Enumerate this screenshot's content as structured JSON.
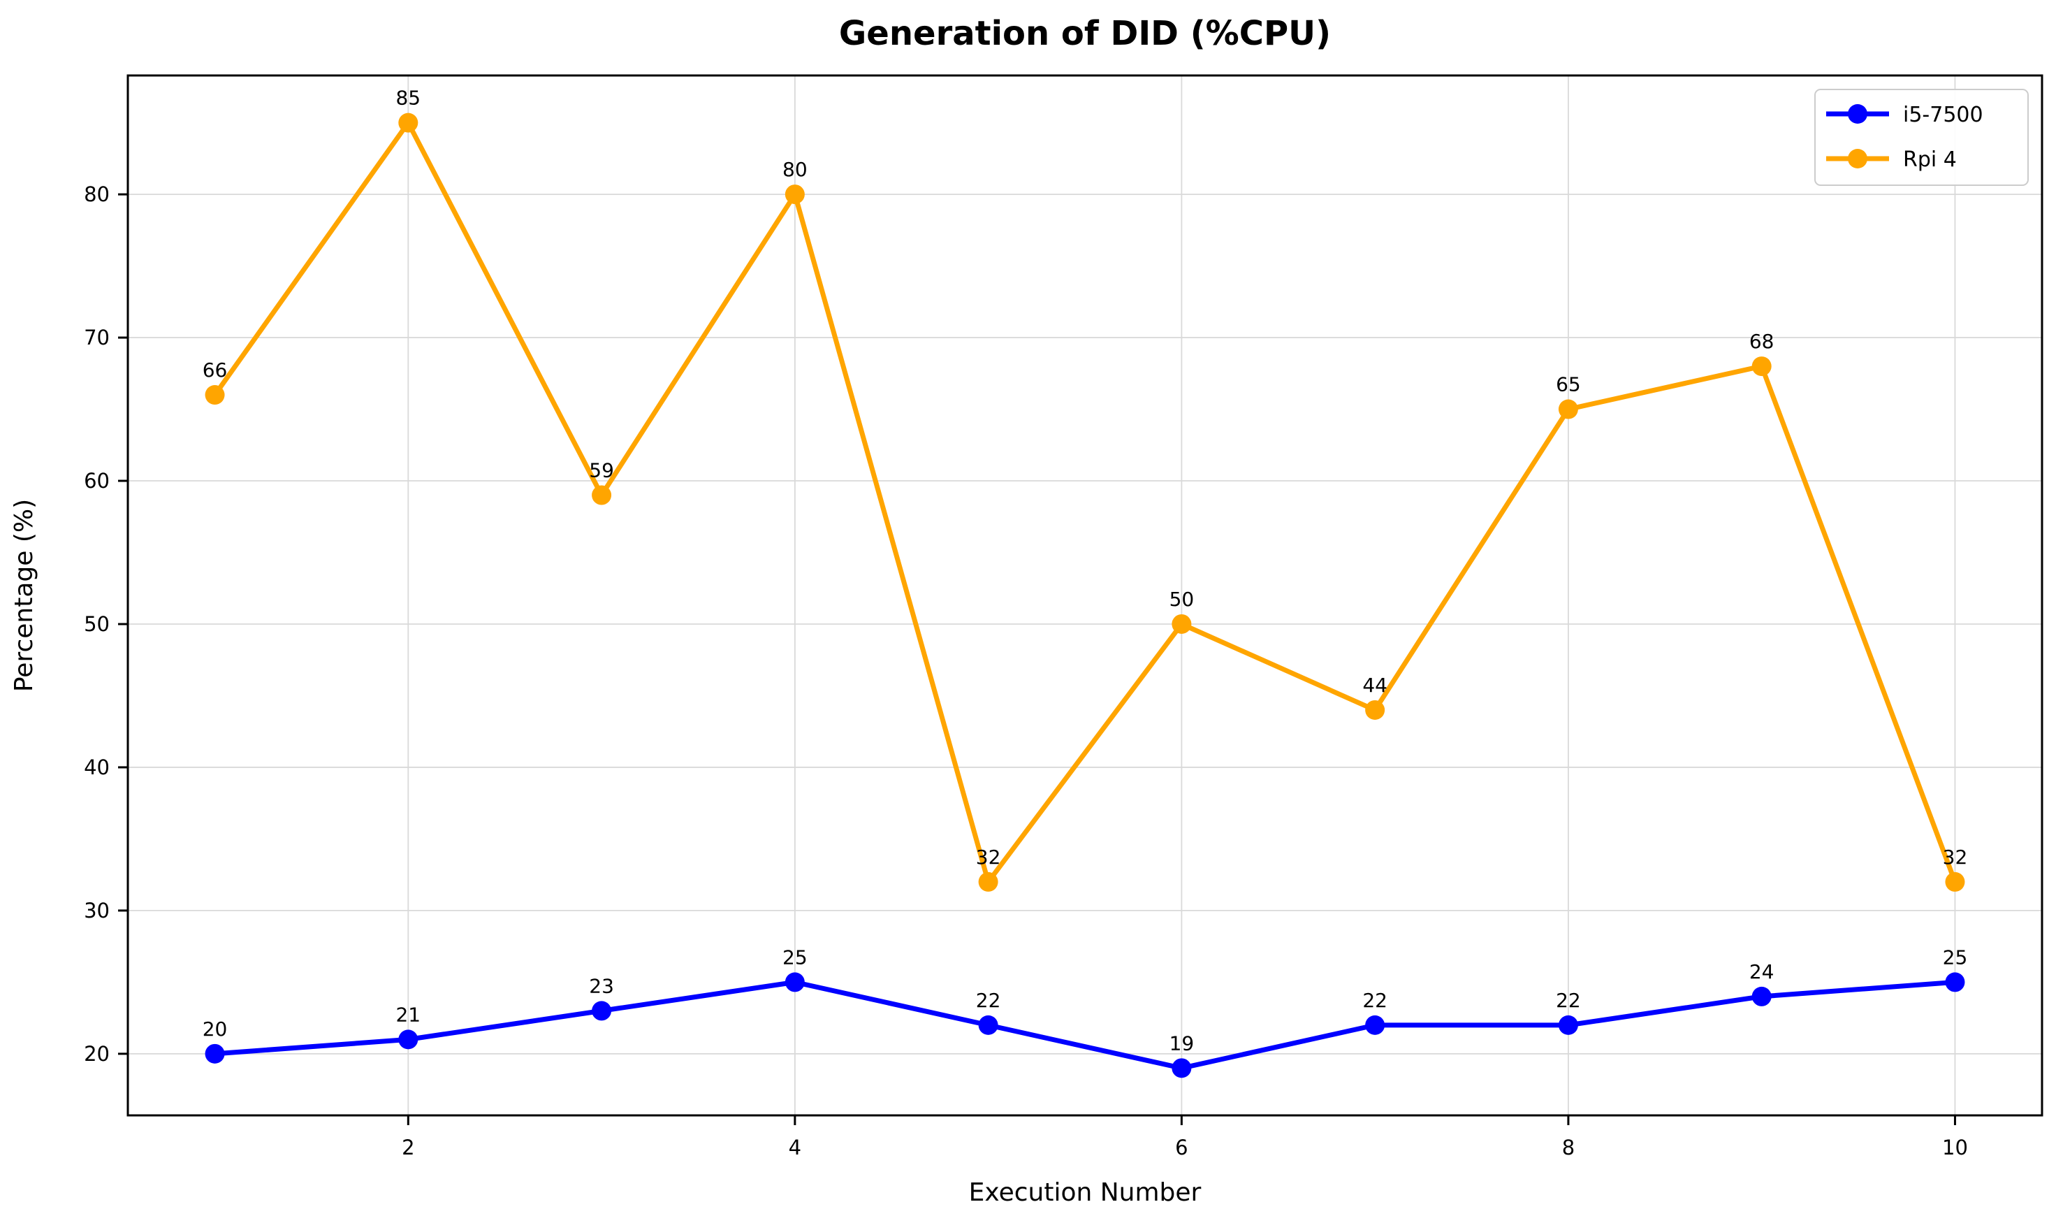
{
  "chart_data": {
    "type": "line",
    "title": "Generation of DID (%CPU)",
    "xlabel": "Execution Number",
    "ylabel": "Percentage (%)",
    "x": [
      1,
      2,
      3,
      4,
      5,
      6,
      7,
      8,
      9,
      10
    ],
    "series": [
      {
        "name": "i5-7500",
        "color": "#0000ff",
        "values": [
          20,
          21,
          23,
          25,
          22,
          19,
          22,
          22,
          24,
          25
        ]
      },
      {
        "name": "Rpi 4",
        "color": "#ffa500",
        "values": [
          66,
          85,
          59,
          80,
          32,
          50,
          44,
          65,
          68,
          32
        ]
      }
    ],
    "data_labels": true,
    "xticks": [
      2,
      4,
      6,
      8,
      10
    ],
    "yticks": [
      20,
      30,
      40,
      50,
      60,
      70,
      80
    ],
    "xlim": [
      0.55,
      10.45
    ],
    "ylim": [
      15.7,
      88.3
    ],
    "grid": true,
    "legend_position": "upper right",
    "colors": {
      "grid": "#d9d9d9",
      "spine": "#000000",
      "tick": "#000000",
      "text": "#000000",
      "legend_border": "#cccccc",
      "legend_bg": "#ffffff",
      "background": "#ffffff"
    }
  }
}
